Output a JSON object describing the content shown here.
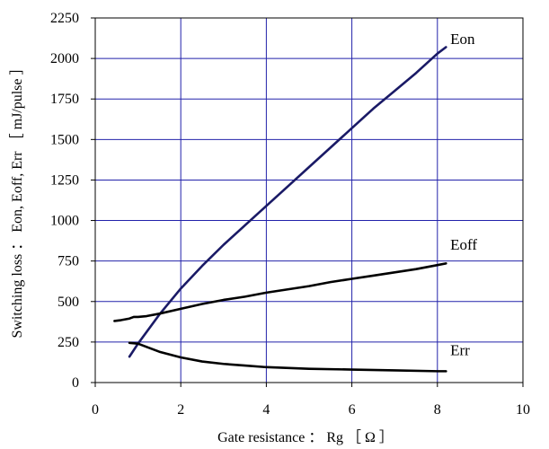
{
  "chart_data": {
    "type": "line",
    "title": "",
    "xlabel": "Gate resistance ： Rg ［ Ω ］",
    "ylabel": "Switching loss ： Eon, Eoff, Err ［ mJ/pulse ］",
    "xlim": [
      0,
      10
    ],
    "ylim": [
      0,
      2250
    ],
    "xticks": [
      0,
      2,
      4,
      6,
      8,
      10
    ],
    "yticks": [
      0,
      250,
      500,
      750,
      1000,
      1250,
      1500,
      1750,
      2000,
      2250
    ],
    "xtick_labels": [
      "0",
      "2",
      "4",
      "6",
      "8",
      "10"
    ],
    "ytick_labels": [
      "0",
      "250",
      "500",
      "750",
      "1000",
      "1250",
      "1500",
      "1750",
      "2000",
      "2250"
    ],
    "grid": true,
    "colors": {
      "grid": "#2222aa",
      "frame": "#000000",
      "eon": "#1a1a66",
      "eoff": "#000000",
      "err": "#000000"
    },
    "series": [
      {
        "name": "Eon",
        "color": "#1a1a66",
        "x": [
          0.8,
          1.0,
          1.5,
          2.0,
          2.5,
          3.0,
          3.5,
          4.0,
          4.5,
          5.0,
          5.5,
          6.0,
          6.5,
          7.0,
          7.5,
          8.0,
          8.2
        ],
        "y": [
          160,
          240,
          420,
          580,
          720,
          850,
          970,
          1090,
          1210,
          1330,
          1450,
          1570,
          1690,
          1800,
          1910,
          2030,
          2070
        ]
      },
      {
        "name": "Eoff",
        "color": "#000000",
        "x": [
          0.45,
          0.6,
          0.8,
          0.9,
          1.0,
          1.2,
          1.5,
          2.0,
          2.5,
          3.0,
          3.5,
          4.0,
          4.5,
          5.0,
          5.5,
          6.0,
          6.5,
          7.0,
          7.5,
          8.0,
          8.2
        ],
        "y": [
          380,
          385,
          395,
          405,
          405,
          410,
          425,
          455,
          485,
          510,
          530,
          555,
          575,
          595,
          620,
          640,
          660,
          680,
          700,
          725,
          735
        ]
      },
      {
        "name": "Err",
        "color": "#000000",
        "x": [
          0.8,
          1.0,
          1.2,
          1.5,
          2.0,
          2.5,
          3.0,
          3.5,
          4.0,
          5.0,
          6.0,
          7.0,
          8.0,
          8.2
        ],
        "y": [
          245,
          240,
          220,
          190,
          155,
          130,
          115,
          105,
          95,
          85,
          80,
          75,
          70,
          70
        ]
      }
    ],
    "series_labels": [
      {
        "text": "Eon",
        "x": 8.3,
        "y": 2090
      },
      {
        "text": "Eoff",
        "x": 8.3,
        "y": 820
      },
      {
        "text": "Err",
        "x": 8.3,
        "y": 170
      }
    ]
  }
}
